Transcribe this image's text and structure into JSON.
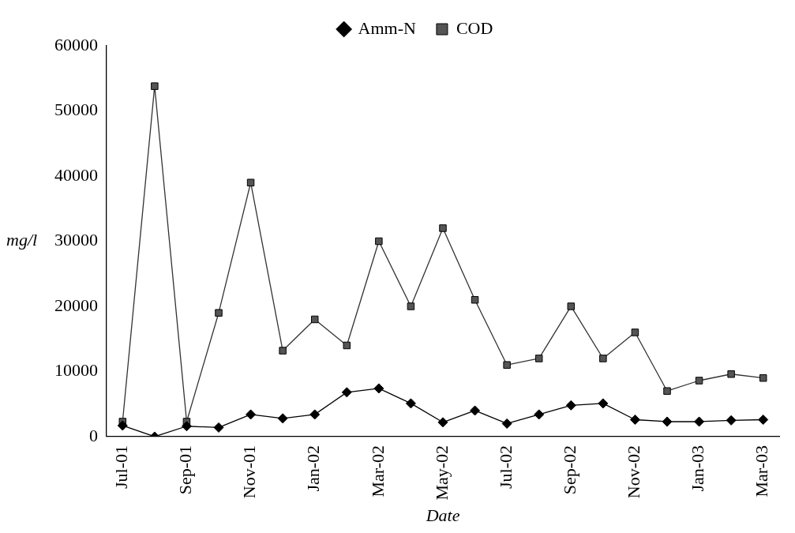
{
  "chart_data": {
    "type": "line",
    "xlabel": "Date",
    "ylabel": "mg/l",
    "categories": [
      "Jul-01",
      null,
      "Sep-01",
      null,
      "Nov-01",
      null,
      "Jan-02",
      null,
      "Mar-02",
      null,
      "May-02",
      null,
      "Jul-02",
      null,
      "Sep-02",
      null,
      "Nov-02",
      null,
      "Jan-03",
      null,
      "Mar-03"
    ],
    "series": [
      {
        "name": "Amm-N",
        "color": "#000000",
        "marker": "diamond",
        "values": [
          1700,
          0,
          1600,
          1400,
          3400,
          2800,
          3400,
          6800,
          7400,
          5100,
          2200,
          4000,
          2000,
          3400,
          4800,
          5100,
          2600,
          2300,
          2300,
          2500,
          2600
        ]
      },
      {
        "name": "COD",
        "color": "#333333",
        "marker": "square",
        "values": [
          2300,
          53800,
          2300,
          19000,
          39000,
          13200,
          18000,
          14000,
          30000,
          20000,
          32000,
          21000,
          11000,
          12000,
          20000,
          12000,
          16000,
          7000,
          8600,
          9600,
          9000
        ]
      }
    ],
    "ylim": [
      0,
      60000
    ],
    "yticks": [
      0,
      10000,
      20000,
      30000,
      40000,
      50000,
      60000
    ],
    "grid": false,
    "legend": "top",
    "line_style": "solid"
  }
}
